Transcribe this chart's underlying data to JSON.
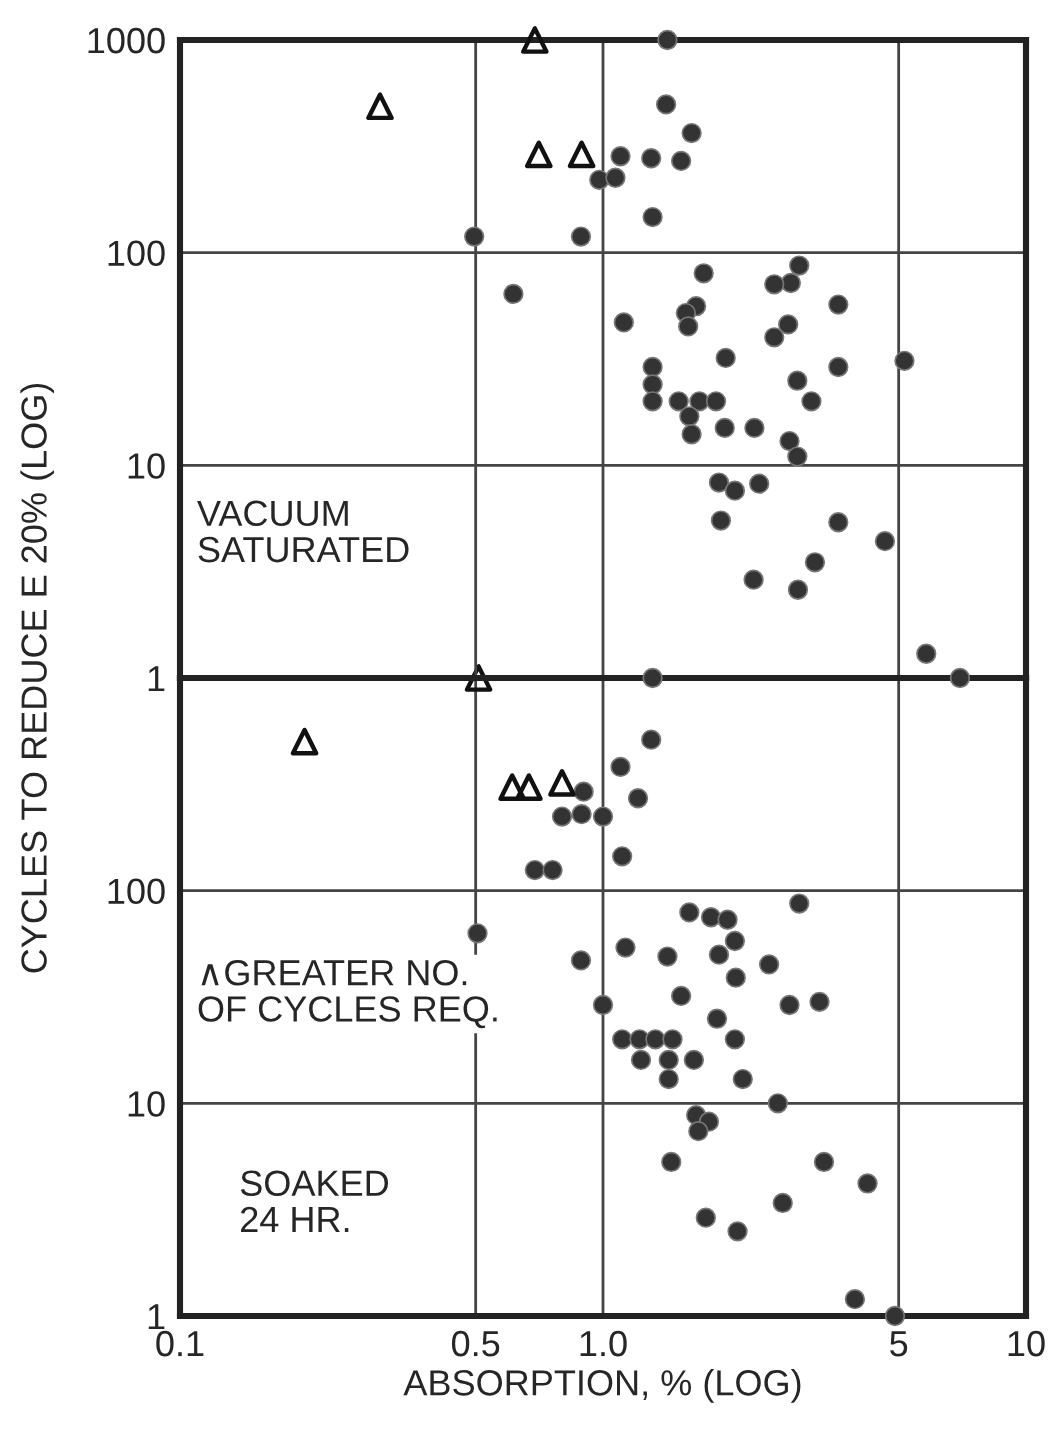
{
  "chart_data": [
    {
      "type": "scatter",
      "ylabel": "CYCLES TO REDUCE E 20% (LOG)",
      "annotations": [
        "VACUUM\nSATURATED"
      ],
      "log": "xy",
      "grid": true,
      "tick_labels": "y",
      "xlim": [
        0.1,
        10
      ],
      "ylim": [
        1,
        1000
      ],
      "xticks": [
        0.1,
        0.5,
        1,
        5,
        10
      ],
      "yticks": [
        1,
        10,
        100,
        1000
      ],
      "series": [
        {
          "color": "#333333",
          "marker": "circle",
          "x": [
            1.1,
            0.98,
            1.07,
            0.496,
            0.887,
            0.614,
            1.12,
            1.42,
            1.41,
            1.62,
            1.3,
            1.53,
            1.31,
            1.73,
            2.91,
            2.78,
            2.54,
            1.66,
            1.57,
            3.6,
            1.59,
            2.74,
            2.54,
            1.95,
            3.6,
            5.16,
            1.31,
            1.31,
            1.31,
            2.88,
            3.11,
            1.51,
            1.69,
            1.85,
            1.6,
            1.62,
            1.94,
            2.28,
            2.76,
            2.88,
            1.88,
            2.05,
            2.34,
            1.9,
            3.6,
            4.64,
            3.17,
            2.27,
            2.89,
            5.81,
            6.98,
            1.31
          ],
          "values": [
            284,
            220,
            225,
            119,
            119,
            64,
            47,
            1000,
            498,
            365,
            278,
            270,
            147,
            80,
            87,
            72,
            71,
            56,
            52,
            57,
            45,
            46,
            40,
            32,
            29,
            31,
            29,
            24,
            20,
            25,
            20,
            20,
            20,
            20,
            17,
            14,
            15,
            15,
            13,
            11,
            8.3,
            7.6,
            8.2,
            5.5,
            5.4,
            4.4,
            3.5,
            2.9,
            2.6,
            1.3,
            1,
            1
          ]
        },
        {
          "color": "#111111",
          "marker": "triangle",
          "x": [
            0.69,
            0.297,
            0.705,
            0.89
          ],
          "values": [
            1000,
            488,
            290,
            290
          ]
        }
      ]
    },
    {
      "type": "scatter",
      "xlabel": "ABSORPTION, % (LOG)",
      "annotations": [
        "∧GREATER NO.\nOF CYCLES REQ.",
        "SOAKED\n24 HR."
      ],
      "log": "xy",
      "grid": true,
      "xlim": [
        0.1,
        10
      ],
      "ylim": [
        1,
        1000
      ],
      "xticks": [
        0.1,
        0.5,
        {
          "value": 1,
          "label": "1.0"
        },
        5,
        10
      ],
      "yticks": [
        1,
        10,
        100,
        {
          "value": 1000,
          "label": null
        }
      ],
      "series": [
        {
          "color": "#333333",
          "marker": "circle",
          "x": [
            0.9,
            0.8,
            0.89,
            1.0,
            1.1,
            1.21,
            1.3,
            1.11,
            0.69,
            0.76,
            0.505,
            0.887,
            1.13,
            1.0,
            1.11,
            1.6,
            1.8,
            1.97,
            2.91,
            2.05,
            1.88,
            2.47,
            1.42,
            2.06,
            1.53,
            2.76,
            3.25,
            1.86,
            2.05,
            1.22,
            1.33,
            1.46,
            1.23,
            1.43,
            1.64,
            1.43,
            2.14,
            2.59,
            1.66,
            1.78,
            1.68,
            1.45,
            3.33,
            4.22,
            2.66,
            1.75,
            2.08,
            3.94,
            4.9
          ],
          "values": [
            292,
            223,
            229,
            223,
            382,
            272,
            513,
            145,
            125,
            125,
            63,
            47,
            54,
            29,
            20,
            79,
            75,
            73,
            87,
            58,
            50,
            45,
            49,
            39,
            32,
            29,
            30,
            25,
            20,
            20,
            20,
            20,
            16,
            16,
            16,
            13,
            13,
            10,
            8.8,
            8.2,
            7.4,
            5.3,
            5.3,
            4.2,
            3.4,
            2.9,
            2.5,
            1.2,
            1
          ]
        },
        {
          "color": "#111111",
          "marker": "triangle",
          "x": [
            0.508,
            0.197,
            0.61,
            0.668,
            0.8
          ],
          "values": [
            1000,
            502,
            307,
            307,
            321
          ]
        }
      ]
    }
  ]
}
